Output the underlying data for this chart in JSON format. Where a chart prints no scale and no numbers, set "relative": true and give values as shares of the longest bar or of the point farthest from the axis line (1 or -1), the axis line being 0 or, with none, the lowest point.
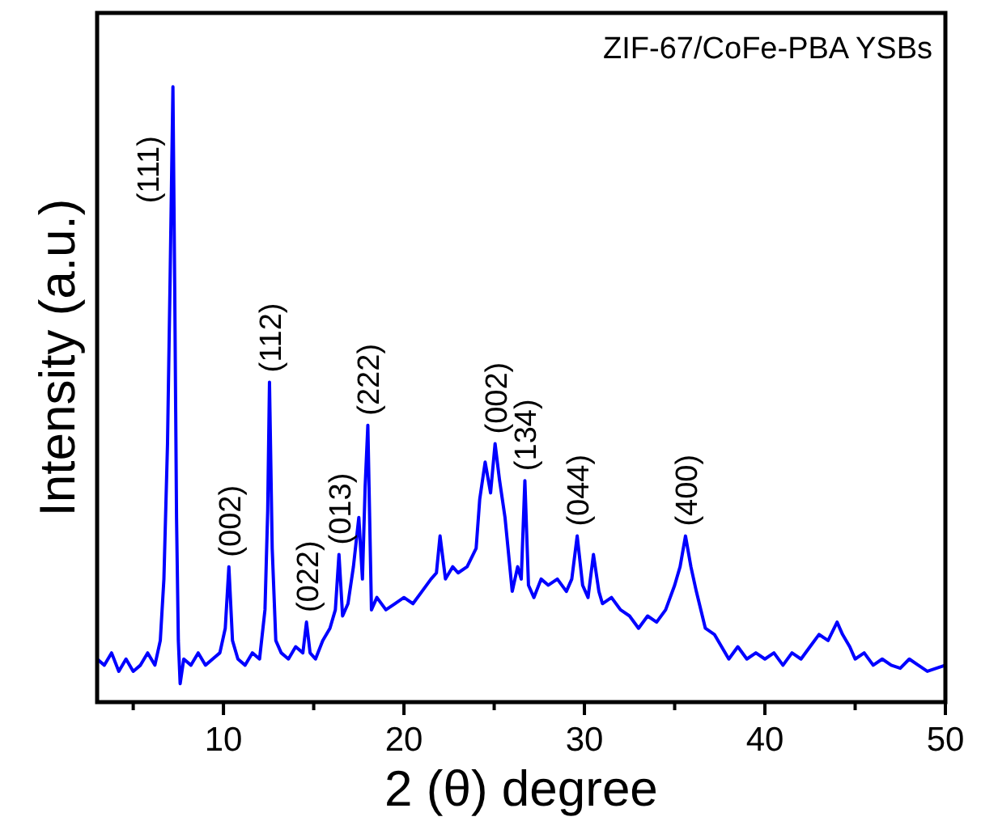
{
  "chart_data": {
    "type": "line",
    "title": "ZIF-67/CoFe-PBA YSBs",
    "xlabel": "2 (θ) degree",
    "ylabel": "Intensity (a.u.)",
    "relative": true,
    "xlim": [
      3,
      50
    ],
    "xticks": [
      {
        "value": 5,
        "label": null
      },
      10,
      {
        "value": 15,
        "label": null
      },
      20,
      {
        "value": 25,
        "label": null
      },
      30,
      {
        "value": 35,
        "label": null
      },
      40,
      {
        "value": 45,
        "label": null
      },
      50
    ],
    "series": [
      {
        "color": "#0000ff",
        "x": [
          3,
          3.4,
          3.8,
          4.2,
          4.6,
          5,
          5.4,
          5.8,
          6.2,
          6.5,
          6.7,
          6.9,
          7.05,
          7.2,
          7.3,
          7.4,
          7.5,
          7.6,
          7.8,
          8.2,
          8.6,
          9,
          9.4,
          9.8,
          10.1,
          10.3,
          10.5,
          10.8,
          11.2,
          11.6,
          12,
          12.3,
          12.45,
          12.55,
          12.7,
          12.9,
          13.2,
          13.6,
          14,
          14.4,
          14.6,
          14.8,
          15.1,
          15.5,
          15.9,
          16.2,
          16.4,
          16.6,
          16.9,
          17.2,
          17.5,
          17.7,
          17.85,
          18,
          18.2,
          18.5,
          19,
          19.5,
          20,
          20.5,
          21,
          21.5,
          21.8,
          22,
          22.3,
          22.7,
          23,
          23.5,
          24,
          24.2,
          24.5,
          24.8,
          25.05,
          25.3,
          25.6,
          26,
          26.3,
          26.5,
          26.7,
          26.9,
          27.2,
          27.6,
          28,
          28.5,
          29,
          29.3,
          29.6,
          29.9,
          30.2,
          30.5,
          30.8,
          31,
          31.5,
          32,
          32.5,
          33,
          33.5,
          34,
          34.5,
          35,
          35.3,
          35.6,
          35.9,
          36.2,
          36.7,
          37.2,
          38,
          38.5,
          39,
          39.5,
          40,
          40.5,
          41,
          41.5,
          42,
          42.5,
          43,
          43.5,
          44,
          44.3,
          44.7,
          45,
          45.5,
          46,
          46.5,
          47,
          47.5,
          48,
          48.5,
          49,
          49.5,
          50
        ],
        "values": [
          0.07,
          0.06,
          0.08,
          0.05,
          0.07,
          0.05,
          0.06,
          0.08,
          0.06,
          0.1,
          0.2,
          0.42,
          0.7,
          1.0,
          0.67,
          0.3,
          0.1,
          0.03,
          0.07,
          0.06,
          0.08,
          0.06,
          0.07,
          0.08,
          0.12,
          0.22,
          0.1,
          0.07,
          0.06,
          0.08,
          0.07,
          0.15,
          0.31,
          0.52,
          0.25,
          0.1,
          0.08,
          0.07,
          0.09,
          0.08,
          0.13,
          0.08,
          0.07,
          0.1,
          0.12,
          0.15,
          0.24,
          0.14,
          0.16,
          0.22,
          0.3,
          0.2,
          0.35,
          0.45,
          0.15,
          0.17,
          0.15,
          0.16,
          0.17,
          0.16,
          0.18,
          0.2,
          0.21,
          0.27,
          0.2,
          0.22,
          0.21,
          0.22,
          0.25,
          0.33,
          0.39,
          0.34,
          0.42,
          0.36,
          0.3,
          0.18,
          0.22,
          0.2,
          0.36,
          0.19,
          0.17,
          0.2,
          0.19,
          0.2,
          0.18,
          0.2,
          0.27,
          0.19,
          0.17,
          0.24,
          0.18,
          0.16,
          0.17,
          0.15,
          0.14,
          0.12,
          0.14,
          0.13,
          0.15,
          0.19,
          0.22,
          0.27,
          0.22,
          0.18,
          0.12,
          0.11,
          0.07,
          0.09,
          0.07,
          0.08,
          0.07,
          0.08,
          0.06,
          0.08,
          0.07,
          0.09,
          0.11,
          0.1,
          0.13,
          0.11,
          0.09,
          0.07,
          0.08,
          0.06,
          0.07,
          0.06,
          0.055,
          0.07,
          0.06,
          0.05,
          0.055,
          0.06
        ]
      }
    ],
    "annotations": [
      {
        "text": "(111)",
        "x": 7.2,
        "y": 1.0
      },
      {
        "text": "(002)",
        "x": 10.3,
        "y": 0.22
      },
      {
        "text": "(112)",
        "x": 12.55,
        "y": 0.52
      },
      {
        "text": "(022)",
        "x": 14.6,
        "y": 0.13
      },
      {
        "text": "(013)",
        "x": 16.4,
        "y": 0.24
      },
      {
        "text": "(222)",
        "x": 18,
        "y": 0.45
      },
      {
        "text": "(002)",
        "x": 25.05,
        "y": 0.42
      },
      {
        "text": "(134)",
        "x": 26.7,
        "y": 0.36
      },
      {
        "text": "(044)",
        "x": 29.6,
        "y": 0.27
      },
      {
        "text": "(400)",
        "x": 35.6,
        "y": 0.27
      }
    ]
  }
}
